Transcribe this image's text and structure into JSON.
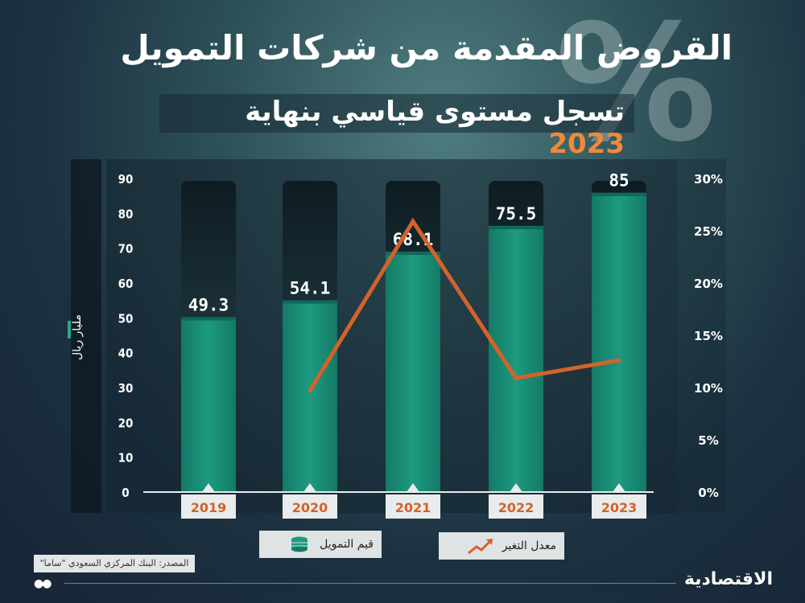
{
  "header": {
    "title": "القروض المقدمة من شركات التمويل",
    "subtitle_text": "تسجل مستوى قياسي بنهاية",
    "subtitle_year": "2023"
  },
  "chart_data": {
    "type": "bar",
    "categories": [
      "2019",
      "2020",
      "2021",
      "2022",
      "2023"
    ],
    "series": [
      {
        "name": "قيم التمويل",
        "type": "bar",
        "axis": "left",
        "values": [
          49.3,
          54.1,
          68.1,
          75.5,
          85
        ]
      },
      {
        "name": "معدل التغير",
        "type": "line",
        "axis": "right",
        "values": [
          null,
          9.7,
          25.9,
          10.9,
          12.6
        ]
      }
    ],
    "ylabel": "مليار ريال",
    "ylim": [
      0,
      90
    ],
    "y_ticks": [
      "0",
      "10",
      "20",
      "30",
      "40",
      "50",
      "60",
      "70",
      "80",
      "90"
    ],
    "y2lim": [
      0,
      30
    ],
    "y2_ticks": [
      "0%",
      "5%",
      "10%",
      "15%",
      "20%",
      "25%",
      "30%"
    ],
    "grid": false,
    "legend_position": "bottom"
  },
  "colors": {
    "bar": "#1d9a80",
    "bar_top": "#0f6a5c",
    "line": "#d4622a",
    "year_label": "#d4622a",
    "highlight": "#f08a3a"
  },
  "legend": {
    "financing_label": "قيم التمويل",
    "rate_label": "معدل التغير",
    "financing_icon": "coins-icon",
    "rate_icon": "trend-up-icon"
  },
  "source": "المصدر: البنك المركزي السعودي \"ساما\"",
  "footer": {
    "logo": "الاقتصادية",
    "dots": "●●"
  }
}
